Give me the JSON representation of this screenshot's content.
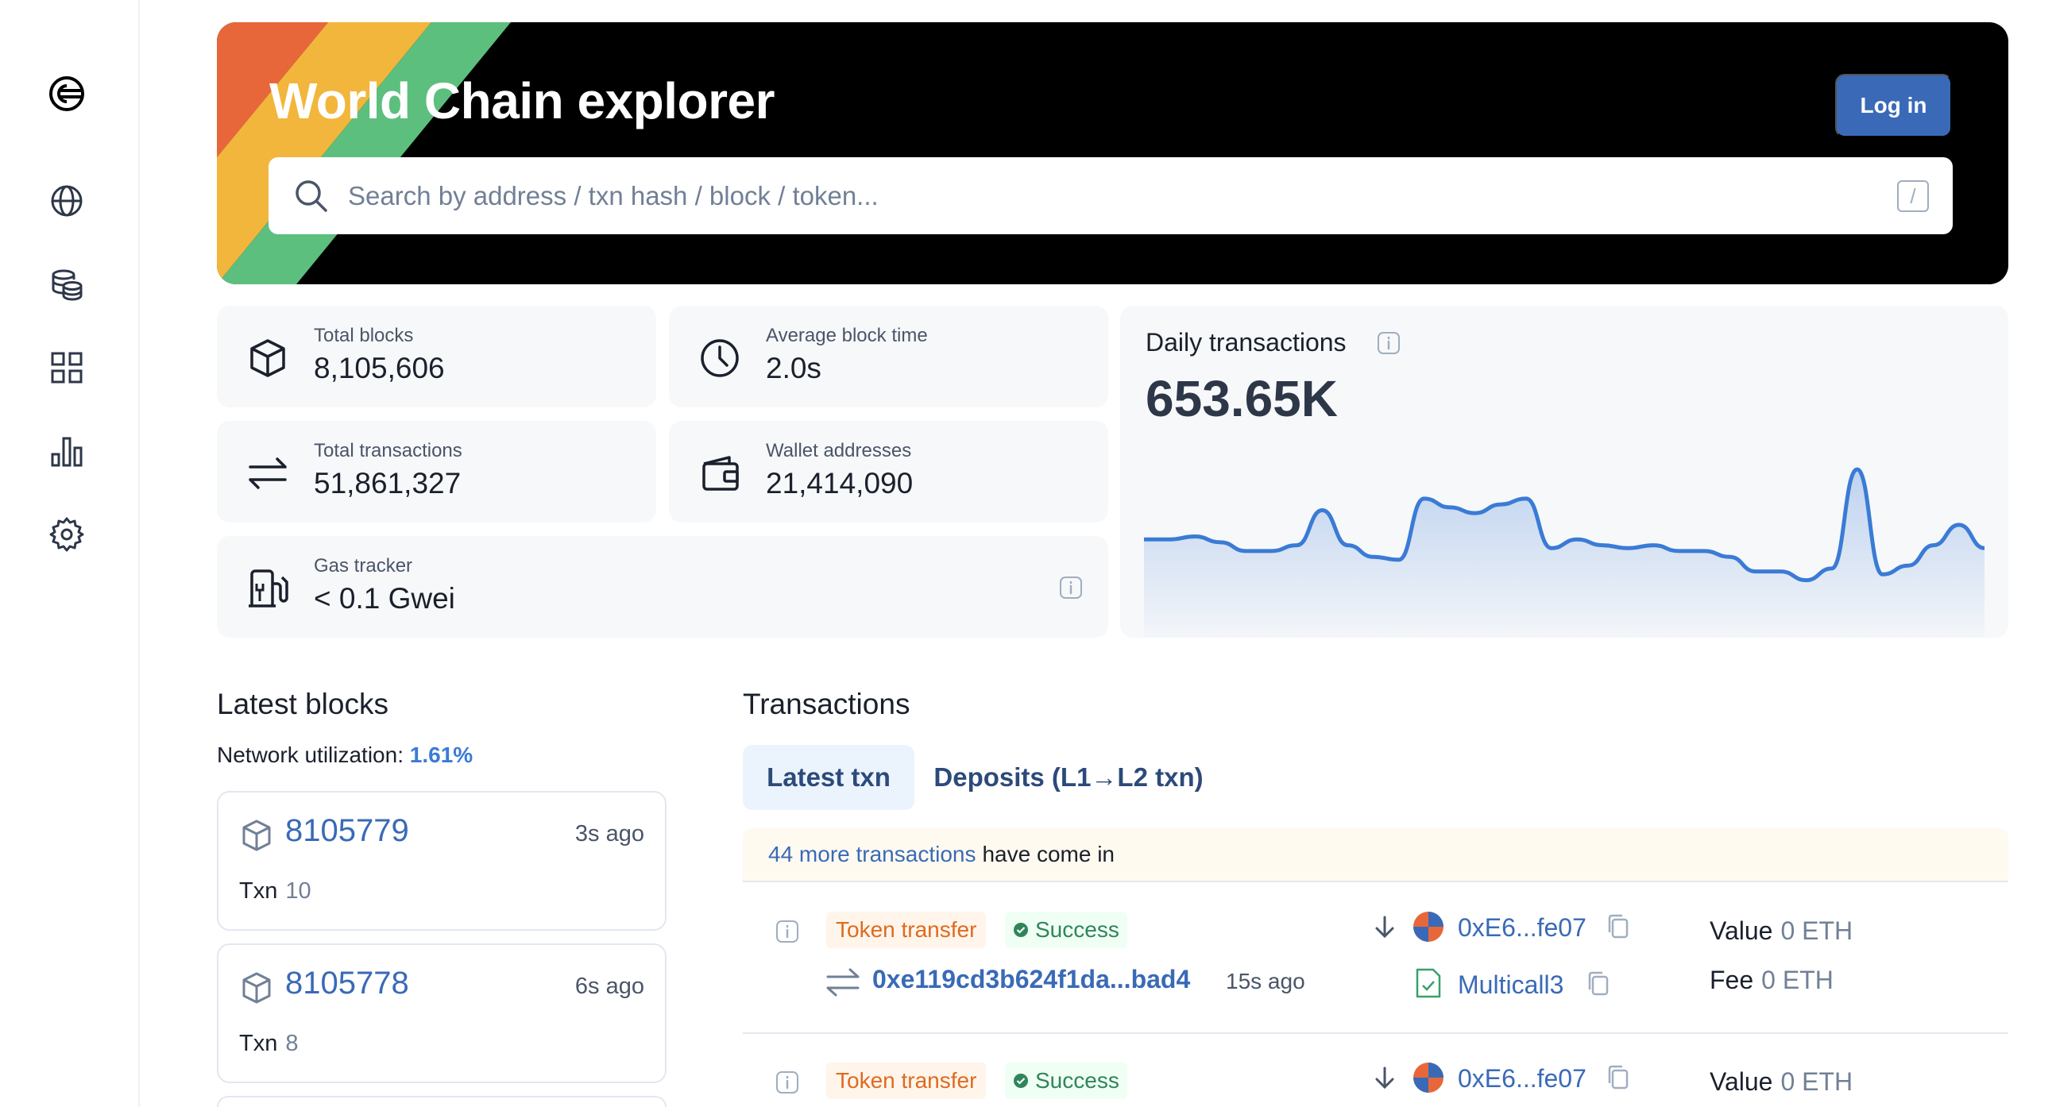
{
  "header": {
    "title": "World Chain explorer",
    "login_label": "Log in",
    "search_placeholder": "Search by address / txn hash / block / token...",
    "search_shortcut": "/"
  },
  "sidebar": {
    "items": [
      {
        "name": "logo",
        "icon": "world-chain-logo"
      },
      {
        "name": "blockchain",
        "icon": "globe-icon"
      },
      {
        "name": "tokens",
        "icon": "coins-icon"
      },
      {
        "name": "apps",
        "icon": "grid-icon"
      },
      {
        "name": "charts",
        "icon": "bar-chart-icon"
      },
      {
        "name": "settings",
        "icon": "gear-icon"
      }
    ]
  },
  "stats": {
    "total_blocks": {
      "label": "Total blocks",
      "value": "8,105,606"
    },
    "avg_block_time": {
      "label": "Average block time",
      "value": "2.0s"
    },
    "total_txns": {
      "label": "Total transactions",
      "value": "51,861,327"
    },
    "wallets": {
      "label": "Wallet addresses",
      "value": "21,414,090"
    },
    "gas": {
      "label": "Gas tracker",
      "value": "< 0.1 Gwei"
    }
  },
  "daily": {
    "title": "Daily transactions",
    "value": "653.65K",
    "chart_data": {
      "type": "area",
      "values": [
        62,
        62,
        64,
        60,
        54,
        54,
        58,
        82,
        58,
        50,
        48,
        90,
        84,
        80,
        86,
        90,
        56,
        62,
        58,
        56,
        58,
        54,
        54,
        50,
        40,
        40,
        34,
        42,
        110,
        38,
        44,
        58,
        72,
        56
      ]
    }
  },
  "latest_blocks": {
    "title": "Latest blocks",
    "util_label": "Network utilization: ",
    "util_value": "1.61%",
    "txn_label": "Txn",
    "blocks": [
      {
        "number": "8105779",
        "age": "3s ago",
        "txn": "10"
      },
      {
        "number": "8105778",
        "age": "6s ago",
        "txn": "8"
      }
    ]
  },
  "transactions": {
    "title": "Transactions",
    "tabs": [
      {
        "label": "Latest txn",
        "active": true
      },
      {
        "label": "Deposits (L1→L2 txn)",
        "active": false
      }
    ],
    "banner_link": "44 more transactions",
    "banner_text": "have come in",
    "value_label": "Value",
    "fee_label": "Fee",
    "rows": [
      {
        "type": "Token transfer",
        "status": "Success",
        "hash": "0xe119cd3b624f1da...bad4",
        "age": "15s ago",
        "from": "0xE6...fe07",
        "to": "Multicall3",
        "value": "0 ETH",
        "fee": "0 ETH"
      },
      {
        "type": "Token transfer",
        "status": "Success",
        "from": "0xE6...fe07",
        "value": "0 ETH"
      }
    ]
  },
  "colors": {
    "accent": "#3a6ab7",
    "hero_bg": "#000000",
    "stripe_orange": "#e8673a",
    "stripe_yellow": "#f2b63c",
    "stripe_green": "#5cbf7e"
  }
}
